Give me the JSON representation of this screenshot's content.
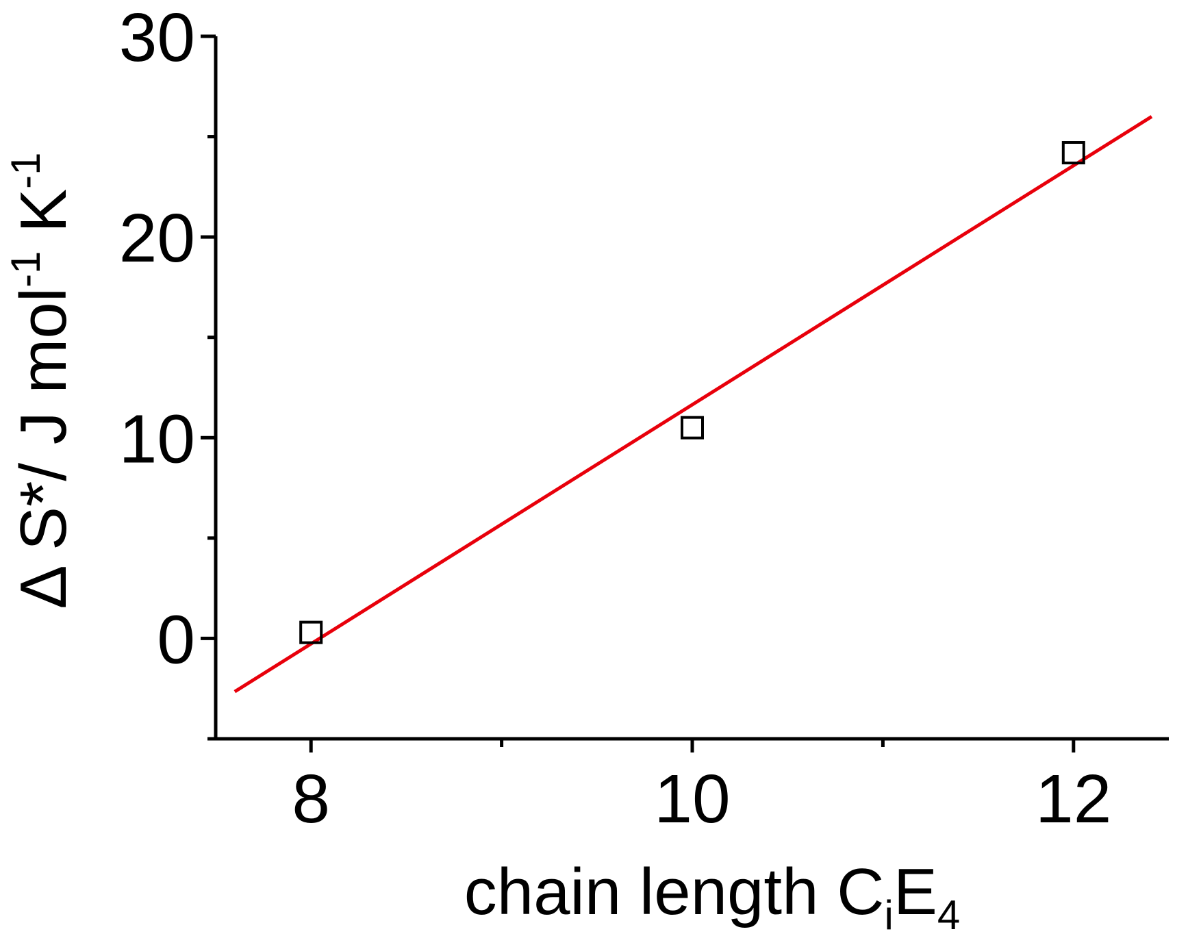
{
  "chart_data": {
    "type": "scatter",
    "ylabel_parts": [
      "Δ S*/ J mol",
      "-1",
      " K",
      "-1"
    ],
    "xlabel_parts": [
      "chain length C",
      "i",
      "E",
      "4"
    ],
    "series": [
      {
        "color": "#000000",
        "x": [
          8,
          10,
          12
        ],
        "values": [
          0.3,
          10.5,
          24.2
        ]
      }
    ],
    "fit": {
      "color": "#e8000b",
      "x": [
        7.6,
        12.41
      ],
      "values": [
        -2.65,
        26.0
      ]
    },
    "xlim": [
      7.5,
      12.5
    ],
    "xticks": [
      8,
      10,
      12
    ],
    "xminorticks": [
      9,
      11
    ],
    "ylim": [
      -5,
      30
    ],
    "yticks": [
      0,
      10,
      20,
      30
    ],
    "yminorticks": [
      -5,
      5,
      15,
      25
    ]
  }
}
